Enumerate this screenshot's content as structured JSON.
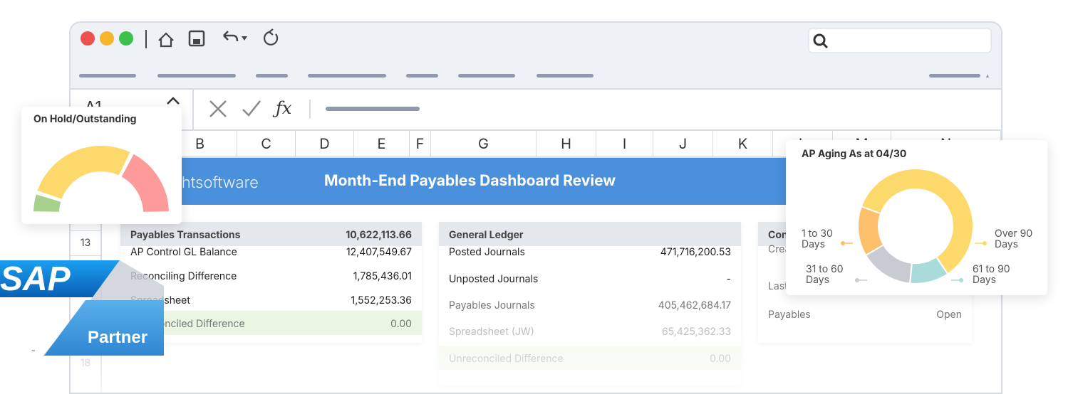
{
  "formula_bar": {
    "cell_ref": "A1",
    "function_label": "ƒx"
  },
  "columns": [
    "B",
    "C",
    "D",
    "E",
    "F",
    "G",
    "H",
    "I",
    "J",
    "K",
    "L",
    "M",
    "N"
  ],
  "row_numbers": [
    "13",
    "18"
  ],
  "banner": {
    "logo": "insightsoftware",
    "title": "Month-End Payables Dashboard Review"
  },
  "panels": [
    {
      "header": "Payables Transactions",
      "header_value": "10,622,113.66",
      "rows": [
        [
          "AP Control GL Balance",
          "12,407,549.67"
        ],
        [
          "Reconciling Difference",
          "1,785,436.01"
        ],
        [
          "Spreadsheet",
          "1,552,253.36"
        ],
        [
          "Unreconciled Difference",
          "0.00"
        ]
      ]
    },
    {
      "header": "General Ledger",
      "rows": [
        [
          "Posted Journals",
          "471,716,200.53"
        ],
        [
          "Unposted Journals",
          "-"
        ],
        [
          "Payables Journals",
          "405,462,684.17"
        ],
        [
          "Spreadsheet (JW)",
          "65,425,362.33"
        ],
        [
          "Unreconciled Difference",
          "0.00"
        ]
      ]
    },
    {
      "header": "Controls",
      "rows": [
        [
          "Created (Payables)"
        ],
        [
          "Last Run By System"
        ],
        [
          "Payables",
          "Open"
        ]
      ]
    }
  ],
  "gauge": {
    "title": "On Hold/Outstanding",
    "values": [
      10,
      55,
      35
    ],
    "colors": [
      "#a8d08d",
      "#fcd96a",
      "#fd9a9a"
    ]
  },
  "aging_chart": {
    "type": "donut",
    "title": "AP Aging As at 04/30",
    "categories": [
      "1 to 30 Days",
      "31 to 60 Days",
      "61 to 90 Days",
      "Over 90 Days"
    ],
    "values": [
      14,
      15,
      11,
      60
    ],
    "colors": [
      "#fdc06a",
      "#c9cbd3",
      "#a9dbda",
      "#fdd96b"
    ]
  },
  "partner_badge": {
    "brand": "SAP",
    "label": "Partner",
    "mark": "™"
  }
}
